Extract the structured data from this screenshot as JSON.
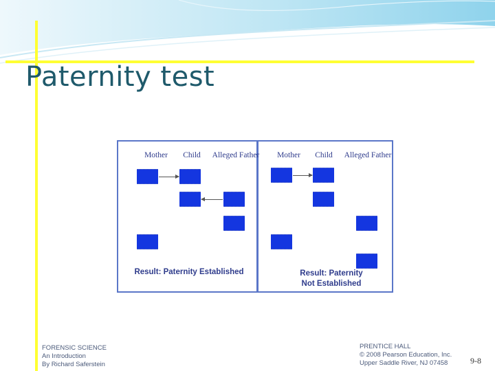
{
  "slide": {
    "title": "Paternity test"
  },
  "figure": {
    "columns": [
      "Mother",
      "Child",
      "Alleged Father"
    ],
    "left_panel": {
      "result": "Result: Paternity Established"
    },
    "right_panel": {
      "result_line1": "Result: Paternity",
      "result_line2": "Not Established"
    }
  },
  "footer": {
    "left": [
      "FORENSIC SCIENCE",
      "An Introduction",
      "By Richard Saferstein"
    ],
    "right": [
      "PRENTICE HALL",
      "© 2008 Pearson Education, Inc.",
      "Upper Saddle River, NJ 07458"
    ],
    "page_number": "9-8"
  },
  "colors": {
    "accent_yellow": "#ffff33",
    "title_teal": "#1f5a6b",
    "band_blue": "#1436e0",
    "frame_blue": "#5a76c8",
    "wave_cyan": "#9ed8ee"
  }
}
